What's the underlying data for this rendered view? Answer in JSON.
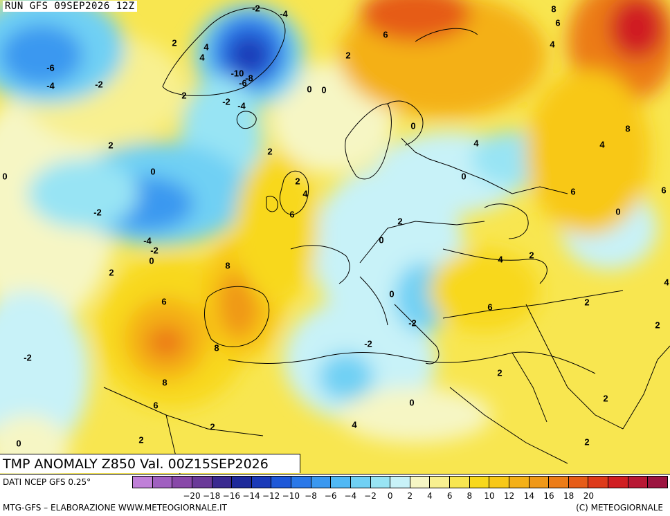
{
  "header": {
    "run_title": "RUN GFS 09SEP2026 12Z",
    "field_title": "TMP ANOMALY Z850 Val. 00Z15SEP2026"
  },
  "legend": {
    "source": "DATI NCEP GFS 0.25°",
    "tick_labels": [
      "-20",
      "-18",
      "-16",
      "-14",
      "-12",
      "-10",
      "-8",
      "-6",
      "-4",
      "-2",
      "0",
      "2",
      "4",
      "6",
      "8",
      "10",
      "12",
      "14",
      "16",
      "18",
      "20"
    ],
    "colors": [
      "#c080d8",
      "#a060c0",
      "#8848a8",
      "#6a3a98",
      "#3a2a90",
      "#1e2a9a",
      "#1a3ab8",
      "#1e58d8",
      "#2a78e8",
      "#3a98f0",
      "#50b8f4",
      "#70d0f4",
      "#98e4f4",
      "#c8f2f8",
      "#f6f6c4",
      "#f8f090",
      "#f8e650",
      "#f8d81c",
      "#f8c818",
      "#f4b018",
      "#f09818",
      "#ec7c18",
      "#e65c18",
      "#de3a1a",
      "#d01e22",
      "#b81834",
      "#9c1440"
    ]
  },
  "footer": {
    "left": "MTG-GFS – ELABORAZIONE WWW.METEOGIORNALE.IT",
    "right": "(C) METEOGIORNALE"
  },
  "map_labels": [
    {
      "text": "-2"
    },
    {
      "text": "-4"
    },
    {
      "text": "8"
    },
    {
      "text": "6"
    },
    {
      "text": "6"
    },
    {
      "text": "4"
    },
    {
      "text": "2"
    },
    {
      "text": "4"
    },
    {
      "text": "4"
    },
    {
      "text": "-6"
    },
    {
      "text": "-4"
    },
    {
      "text": "-2"
    },
    {
      "text": "2"
    },
    {
      "text": "-10"
    },
    {
      "text": "-8"
    },
    {
      "text": "-6"
    },
    {
      "text": "0"
    },
    {
      "text": "0"
    },
    {
      "text": "-2"
    },
    {
      "text": "-4"
    },
    {
      "text": "2"
    },
    {
      "text": "0"
    },
    {
      "text": "8"
    },
    {
      "text": "4"
    },
    {
      "text": "2"
    },
    {
      "text": "4"
    },
    {
      "text": "2"
    },
    {
      "text": "0"
    },
    {
      "text": "0"
    },
    {
      "text": "0"
    },
    {
      "text": "2"
    },
    {
      "text": "4"
    },
    {
      "text": "6"
    },
    {
      "text": "6"
    },
    {
      "text": "6"
    },
    {
      "text": "0"
    },
    {
      "text": "-2"
    },
    {
      "text": "2"
    },
    {
      "text": "0"
    },
    {
      "text": "-4"
    },
    {
      "text": "-2"
    },
    {
      "text": "0"
    },
    {
      "text": "4"
    },
    {
      "text": "2"
    },
    {
      "text": "2"
    },
    {
      "text": "8"
    },
    {
      "text": "4"
    },
    {
      "text": "6"
    },
    {
      "text": "0"
    },
    {
      "text": "2"
    },
    {
      "text": "6"
    },
    {
      "text": "-2"
    },
    {
      "text": "2"
    },
    {
      "text": "8"
    },
    {
      "text": "-2"
    },
    {
      "text": "-2"
    },
    {
      "text": "2"
    },
    {
      "text": "8"
    },
    {
      "text": "6"
    },
    {
      "text": "0"
    },
    {
      "text": "2"
    },
    {
      "text": "2"
    },
    {
      "text": "0"
    },
    {
      "text": "4"
    },
    {
      "text": "2"
    },
    {
      "text": "2"
    }
  ]
}
